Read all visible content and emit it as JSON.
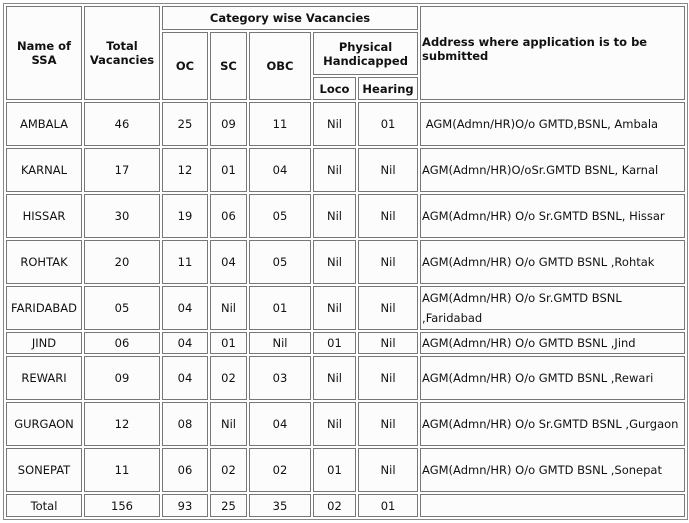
{
  "headers": {
    "name": "Name of SSA",
    "total": "Total Vacancies",
    "category": "Category wise Vacancies",
    "oc": "OC",
    "sc": "SC",
    "obc": "OBC",
    "ph": "Physical Handicapped",
    "loco": "Loco",
    "hearing": "Hearing",
    "address": "Address where application is to be submitted"
  },
  "rows": [
    {
      "ssa": "AMBALA",
      "total": "46",
      "oc": "25",
      "sc": "09",
      "obc": "11",
      "loco": "Nil",
      "hearing": "01",
      "address": " AGM(Admn/HR)O/o GMTD,BSNL, Ambala"
    },
    {
      "ssa": "KARNAL",
      "total": "17",
      "oc": "12",
      "sc": "01",
      "obc": "04",
      "loco": "Nil",
      "hearing": "Nil",
      "address": "AGM(Admn/HR)O/oSr.GMTD BSNL, Karnal"
    },
    {
      "ssa": "HISSAR",
      "total": "30",
      "oc": "19",
      "sc": "06",
      "obc": "05",
      "loco": "Nil",
      "hearing": "Nil",
      "address": "AGM(Admn/HR) O/o Sr.GMTD BSNL, Hissar"
    },
    {
      "ssa": "ROHTAK",
      "total": "20",
      "oc": "11",
      "sc": "04",
      "obc": "05",
      "loco": "Nil",
      "hearing": "Nil",
      "address": "AGM(Admn/HR) O/o GMTD BSNL ,Rohtak"
    },
    {
      "ssa": "FARIDABAD",
      "total": "05",
      "oc": "04",
      "sc": "Nil",
      "obc": "01",
      "loco": "Nil",
      "hearing": "Nil",
      "address": "AGM(Admn/HR) O/o Sr.GMTD BSNL ,Faridabad"
    },
    {
      "ssa": "JIND",
      "total": "06",
      "oc": "04",
      "sc": "01",
      "obc": "Nil",
      "loco": "01",
      "hearing": "Nil",
      "address": "AGM(Admn/HR) O/o GMTD BSNL ,Jind"
    },
    {
      "ssa": "REWARI",
      "total": "09",
      "oc": "04",
      "sc": "02",
      "obc": "03",
      "loco": "Nil",
      "hearing": "Nil",
      "address": "AGM(Admn/HR) O/o GMTD BSNL ,Rewari"
    },
    {
      "ssa": "GURGAON",
      "total": "12",
      "oc": "08",
      "sc": "Nil",
      "obc": "04",
      "loco": "Nil",
      "hearing": "Nil",
      "address": "AGM(Admn/HR) O/o Sr.GMTD BSNL ,Gurgaon"
    },
    {
      "ssa": "SONEPAT",
      "total": "11",
      "oc": "06",
      "sc": "02",
      "obc": "02",
      "loco": "01",
      "hearing": "Nil",
      "address": "AGM(Admn/HR) O/o GMTD BSNL ,Sonepat"
    }
  ],
  "totals": {
    "label": "Total",
    "total": "156",
    "oc": "93",
    "sc": "25",
    "obc": "35",
    "loco": "02",
    "hearing": "01",
    "address": ""
  }
}
